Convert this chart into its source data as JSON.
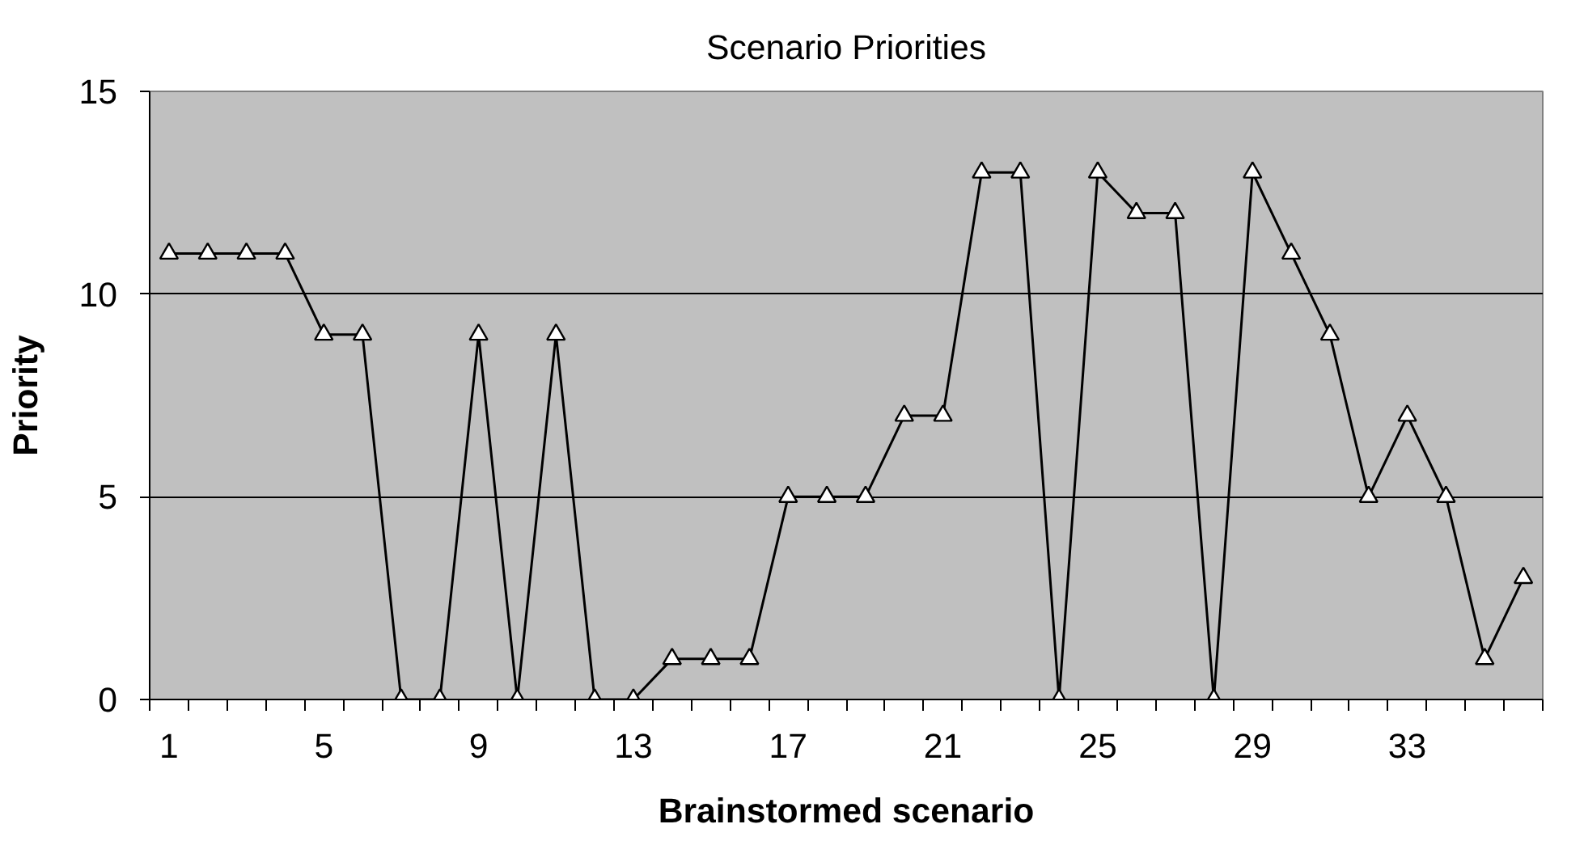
{
  "chart_data": {
    "type": "line",
    "title": "Scenario Priorities",
    "xlabel": "Brainstormed scenario",
    "ylabel": "Priority",
    "categories": [
      "1",
      null,
      null,
      null,
      "5",
      null,
      null,
      null,
      "9",
      null,
      null,
      null,
      "13",
      null,
      null,
      null,
      "17",
      null,
      null,
      null,
      "21",
      null,
      null,
      null,
      "25",
      null,
      null,
      null,
      "29",
      null,
      null,
      null,
      "33",
      null,
      null,
      null
    ],
    "series": [
      {
        "color": "#000000",
        "values": [
          11,
          11,
          11,
          11,
          9,
          9,
          0,
          0,
          9,
          0,
          9,
          0,
          0,
          1,
          1,
          1,
          5,
          5,
          5,
          7,
          7,
          13,
          13,
          0,
          13,
          12,
          12,
          0,
          13,
          11,
          9,
          5,
          7,
          5,
          1,
          3
        ]
      }
    ],
    "ylim": [
      0,
      15
    ],
    "yticks": [
      0,
      5,
      10,
      15
    ],
    "grid": "y",
    "marker": "triangle",
    "line_style": "solid"
  }
}
